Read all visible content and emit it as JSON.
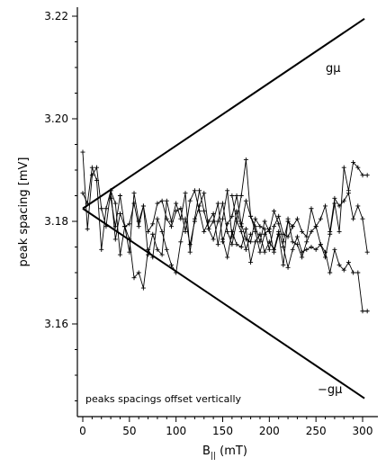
{
  "chart_data": {
    "type": "line",
    "ylabel": "peak spacing [mV]",
    "xlabel_main": "B",
    "xlabel_sub": "||",
    "xlabel_unit": " (mT)",
    "xlim": [
      -7,
      308
    ],
    "ylim": [
      3.1425,
      3.2235
    ],
    "x_ticks": [
      0,
      50,
      100,
      150,
      200,
      250,
      300
    ],
    "y_ticks": [
      3.16,
      3.18,
      3.2,
      3.22
    ],
    "y_tick_labels": [
      "3.16",
      "3.18",
      "3.20",
      "3.22"
    ],
    "envelope": {
      "origin": [
        0,
        3.1825
      ],
      "upper_end": [
        302,
        3.2195
      ],
      "lower_end": [
        302,
        3.1455
      ],
      "upper_label": "gμ",
      "lower_label": "−gμ"
    },
    "annotation": "peaks spacings offset vertically",
    "series": [
      {
        "x": [
          0,
          5,
          10,
          15,
          20,
          25,
          30,
          35,
          40,
          45,
          50,
          55,
          60,
          65,
          70,
          75,
          80,
          85,
          90,
          95,
          100,
          105,
          110,
          115,
          120,
          125,
          130,
          135,
          140,
          145,
          150,
          155,
          160,
          165,
          170,
          175,
          180
        ],
        "values": [
          3.1935,
          3.1785,
          3.189,
          3.1905,
          3.1825,
          3.179,
          3.186,
          3.1835,
          3.1735,
          3.179,
          3.1765,
          3.169,
          3.17,
          3.167,
          3.1745,
          3.173,
          3.1805,
          3.178,
          3.1745,
          3.1715,
          3.17,
          3.176,
          3.1805,
          3.1755,
          3.18,
          3.183,
          3.1855,
          3.1785,
          3.1765,
          3.18,
          3.1835,
          3.178,
          3.1755,
          3.18,
          3.178,
          3.1745,
          3.1775
        ]
      },
      {
        "x": [
          0,
          5,
          10,
          15,
          20,
          25,
          30,
          35,
          40,
          45,
          50,
          55,
          60,
          65,
          70,
          75,
          80,
          85,
          90,
          95,
          100,
          105,
          110,
          115,
          120,
          125,
          130,
          135,
          140,
          145,
          150,
          155,
          160,
          165,
          170,
          175,
          180,
          185,
          190,
          195,
          200,
          205,
          210,
          215,
          220,
          225
        ],
        "values": [
          3.1855,
          3.1835,
          3.1905,
          3.188,
          3.1745,
          3.1825,
          3.186,
          3.1765,
          3.1815,
          3.179,
          3.174,
          3.1855,
          3.18,
          3.183,
          3.1735,
          3.1775,
          3.1745,
          3.1735,
          3.184,
          3.18,
          3.1835,
          3.1805,
          3.1855,
          3.174,
          3.1805,
          3.186,
          3.182,
          3.1785,
          3.18,
          3.1835,
          3.176,
          3.1795,
          3.181,
          3.185,
          3.1795,
          3.1765,
          3.176,
          3.1805,
          3.179,
          3.1785,
          3.1745,
          3.179,
          3.181,
          3.1775,
          3.177,
          3.179
        ]
      },
      {
        "x": [
          30,
          35,
          40,
          45,
          50,
          55,
          60,
          65,
          70,
          75,
          80,
          85,
          90,
          95,
          100,
          105,
          110,
          115,
          120,
          125,
          130,
          135,
          140,
          145,
          150,
          155,
          160,
          165,
          170,
          175,
          180,
          185,
          190,
          195,
          200,
          205,
          210,
          215,
          220,
          225,
          230,
          235,
          240,
          245,
          250,
          255,
          260,
          265,
          270,
          275,
          280,
          285,
          290,
          295,
          300,
          305
        ],
        "values": [
          3.1845,
          3.179,
          3.185,
          3.179,
          3.1795,
          3.1835,
          3.179,
          3.183,
          3.178,
          3.1795,
          3.1835,
          3.184,
          3.1805,
          3.179,
          3.182,
          3.1825,
          3.178,
          3.184,
          3.186,
          3.182,
          3.178,
          3.18,
          3.1815,
          3.1755,
          3.1805,
          3.186,
          3.177,
          3.182,
          3.179,
          3.184,
          3.181,
          3.179,
          3.176,
          3.18,
          3.178,
          3.182,
          3.1795,
          3.176,
          3.18,
          3.179,
          3.1805,
          3.178,
          3.177,
          3.1825,
          3.179,
          3.1805,
          3.183,
          3.178,
          3.1845,
          3.183,
          3.184,
          3.1855,
          3.1805,
          3.183,
          3.1805,
          3.174
        ]
      },
      {
        "x": [
          160,
          165,
          170,
          175,
          180,
          185,
          190,
          195,
          200,
          205,
          210,
          215,
          220,
          225,
          230,
          235,
          240,
          245,
          250,
          255,
          260,
          265,
          270,
          275,
          280,
          285,
          290,
          295,
          300,
          305
        ],
        "values": [
          3.185,
          3.18,
          3.185,
          3.192,
          3.181,
          3.178,
          3.174,
          3.1775,
          3.1785,
          3.174,
          3.1775,
          3.1715,
          3.1805,
          3.176,
          3.1755,
          3.173,
          3.176,
          3.178,
          3.179,
          3.1755,
          3.173,
          3.1775,
          3.1835,
          3.178,
          3.1905,
          3.186,
          3.1915,
          3.1905,
          3.189,
          3.189
        ]
      },
      {
        "x": [
          150,
          155,
          160,
          165,
          170,
          175,
          180,
          185,
          190,
          195,
          200,
          205,
          210,
          215,
          220,
          225,
          230,
          235,
          240,
          245,
          250,
          255,
          260,
          265,
          270,
          275,
          280,
          285,
          290,
          295,
          300,
          305
        ],
        "values": [
          3.1765,
          3.173,
          3.178,
          3.1755,
          3.175,
          3.1785,
          3.172,
          3.176,
          3.1775,
          3.174,
          3.176,
          3.1745,
          3.178,
          3.175,
          3.171,
          3.1745,
          3.177,
          3.174,
          3.1745,
          3.175,
          3.1745,
          3.1755,
          3.174,
          3.17,
          3.1745,
          3.1715,
          3.1705,
          3.172,
          3.17,
          3.17,
          3.1625,
          3.1625
        ]
      }
    ]
  }
}
